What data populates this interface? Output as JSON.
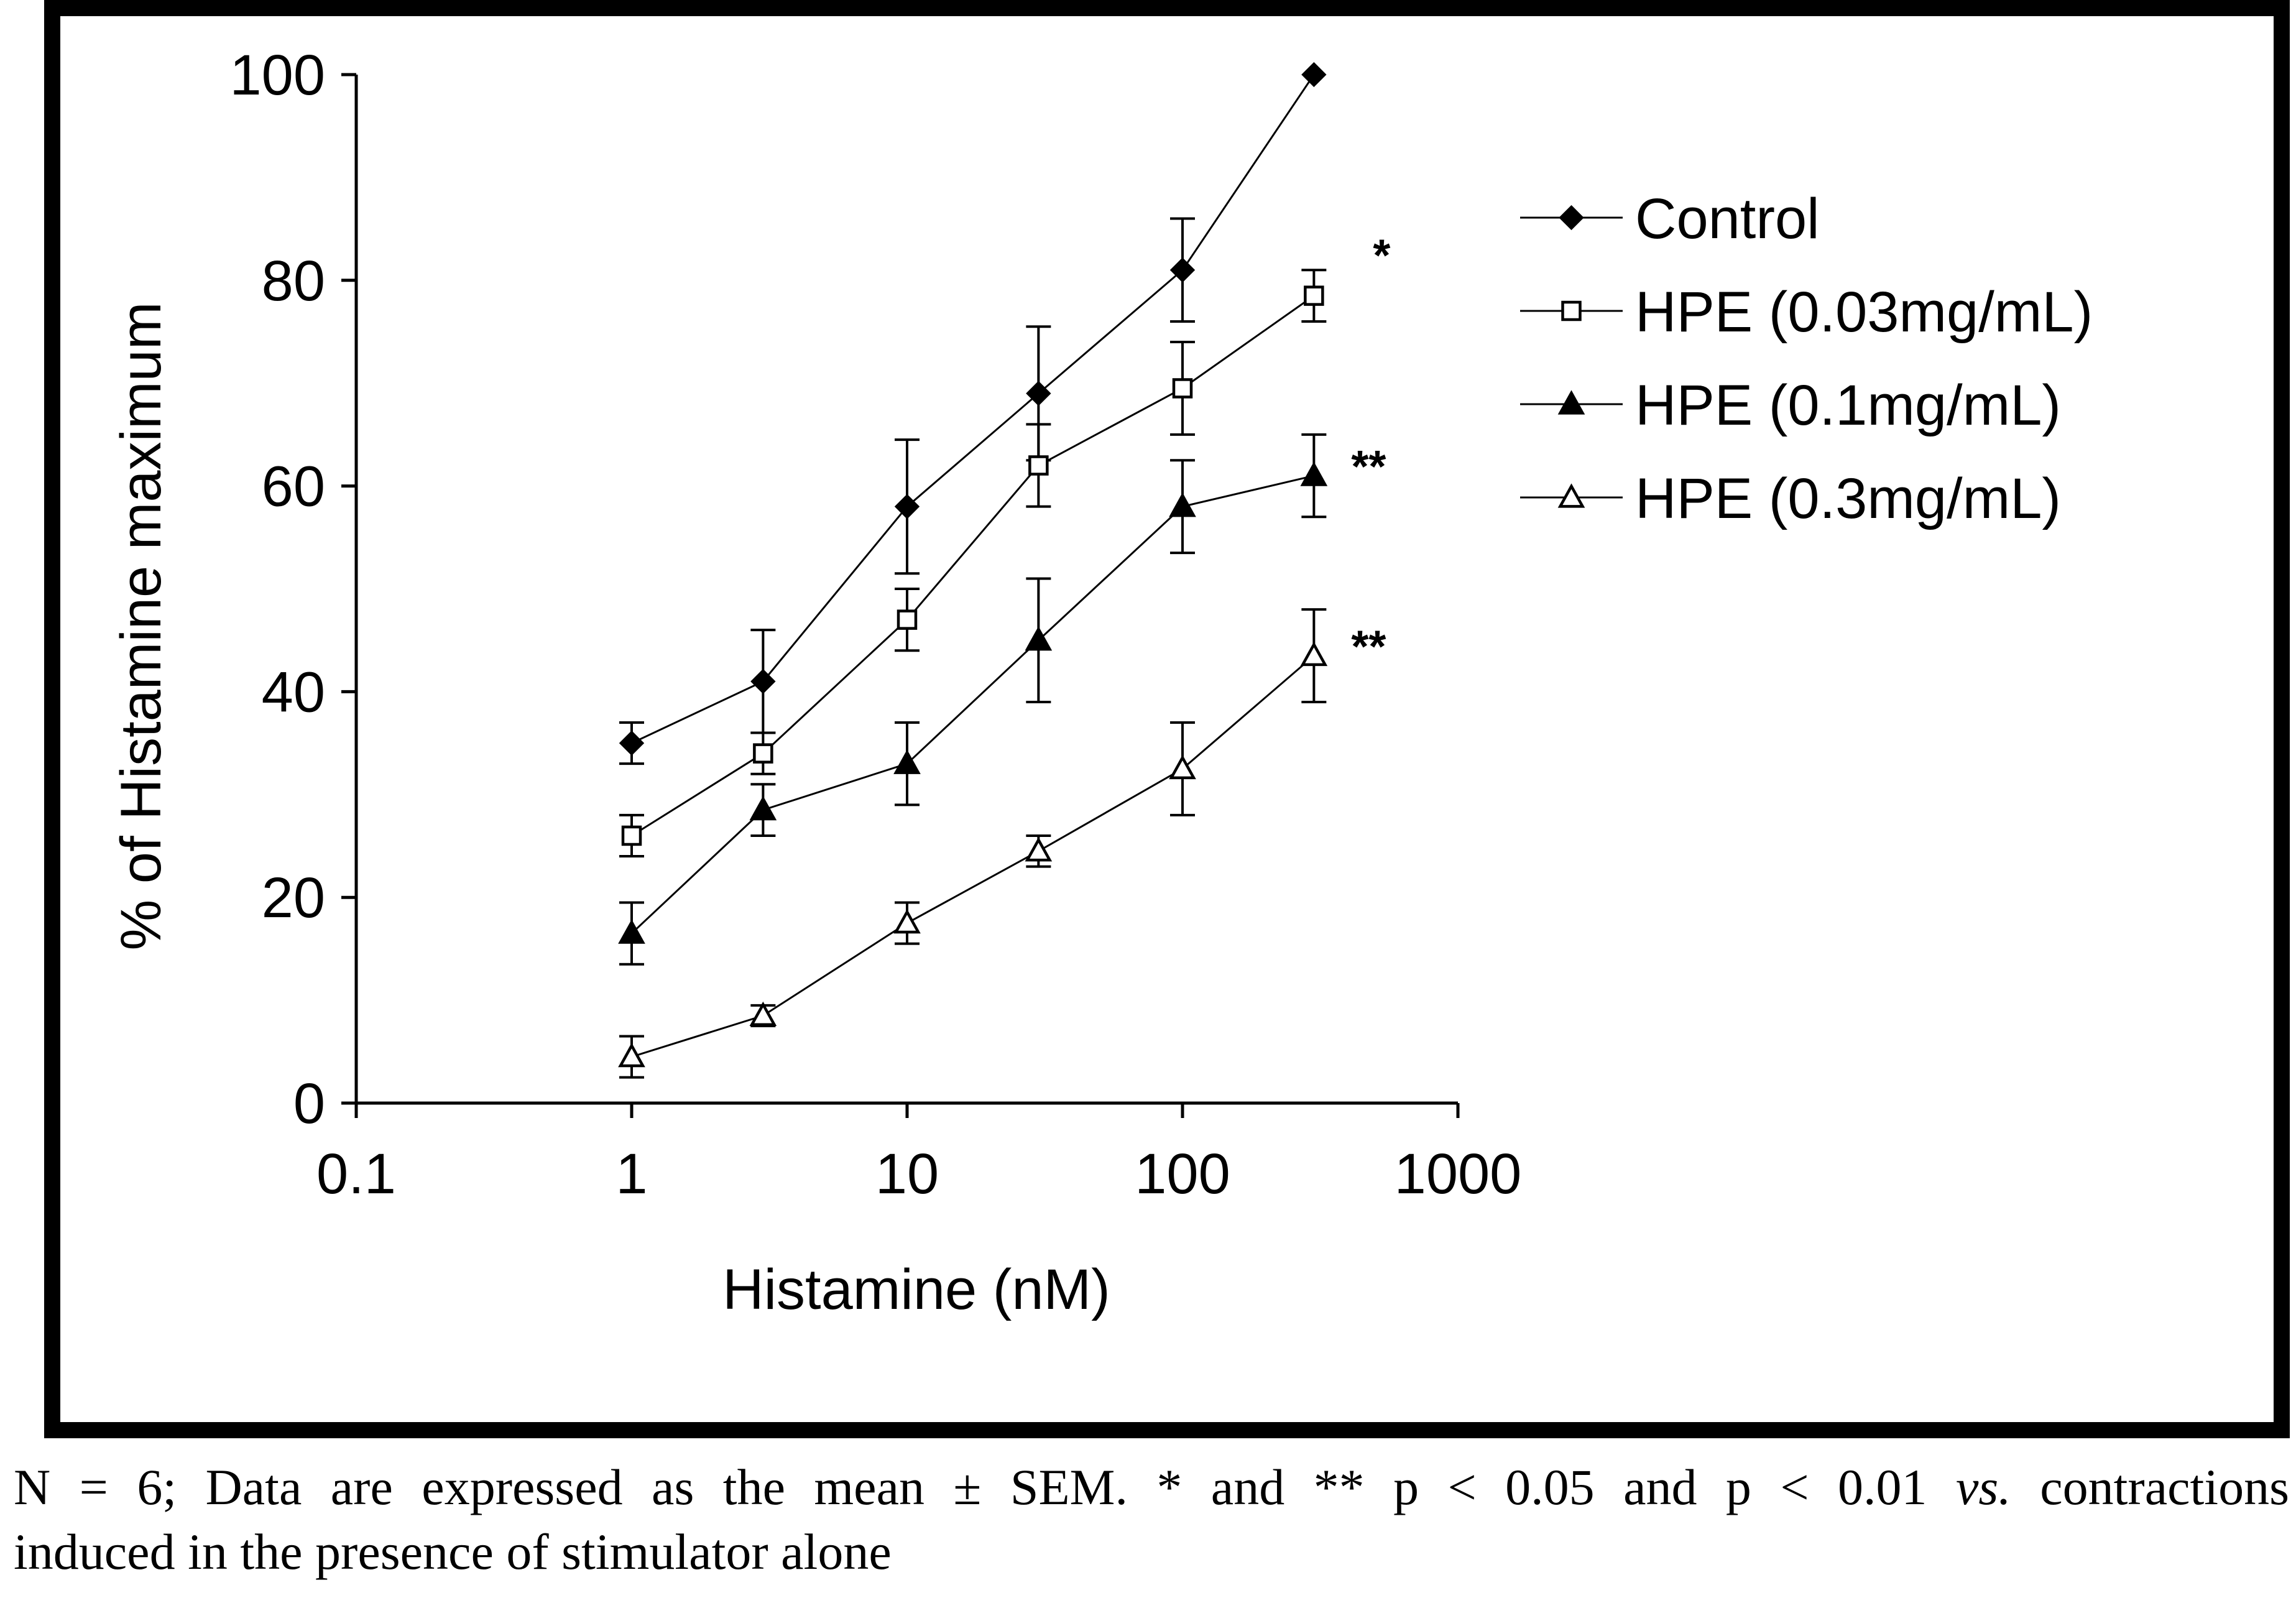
{
  "chart_data": {
    "type": "line",
    "title": "",
    "xlabel": "Histamine (nM)",
    "ylabel": "% of Histamine maximum",
    "xscale": "log",
    "xlim": [
      0.1,
      1000
    ],
    "ylim": [
      0,
      100
    ],
    "x_ticks": [
      "0.1",
      "1",
      "10",
      "100",
      "1000"
    ],
    "x_tick_values": [
      0.1,
      1,
      10,
      100,
      1000
    ],
    "y_ticks": [
      "0",
      "20",
      "40",
      "60",
      "80",
      "100"
    ],
    "y_tick_values": [
      0,
      20,
      40,
      60,
      80,
      100
    ],
    "grid": false,
    "legend_position": "top-right",
    "x": [
      1,
      3,
      10,
      30,
      100,
      300
    ],
    "series": [
      {
        "name": "Control",
        "marker": "diamond",
        "filled": true,
        "values": [
          35,
          41,
          58,
          69,
          81,
          100
        ],
        "errors": [
          2,
          5,
          6.5,
          6.5,
          5,
          0
        ],
        "significance": ""
      },
      {
        "name": "HPE (0.03mg/mL)",
        "marker": "square",
        "filled": false,
        "values": [
          26,
          34,
          47,
          62,
          69.5,
          78.5
        ],
        "errors": [
          2,
          2,
          3,
          4,
          4.5,
          2.5
        ],
        "significance": "*"
      },
      {
        "name": "HPE (0.1mg/mL)",
        "marker": "triangle",
        "filled": true,
        "values": [
          16.5,
          28.5,
          33,
          45,
          58,
          61
        ],
        "errors": [
          3,
          2.5,
          4,
          6,
          4.5,
          4
        ],
        "significance": "**"
      },
      {
        "name": "HPE (0.3mg/mL)",
        "marker": "triangle",
        "filled": false,
        "values": [
          4.5,
          8.5,
          17.5,
          24.5,
          32.5,
          43.5
        ],
        "errors": [
          2,
          1,
          2,
          1.5,
          4.5,
          4.5
        ],
        "significance": "**"
      }
    ]
  },
  "caption": {
    "line1_pre": "N = 6; Data are expressed as the mean ± SEM. * and ** p < 0.05 and p < 0.01 ",
    "line1_italic": "vs.",
    "line1_post": " contractions",
    "line2": "induced in the presence of stimulator alone"
  }
}
